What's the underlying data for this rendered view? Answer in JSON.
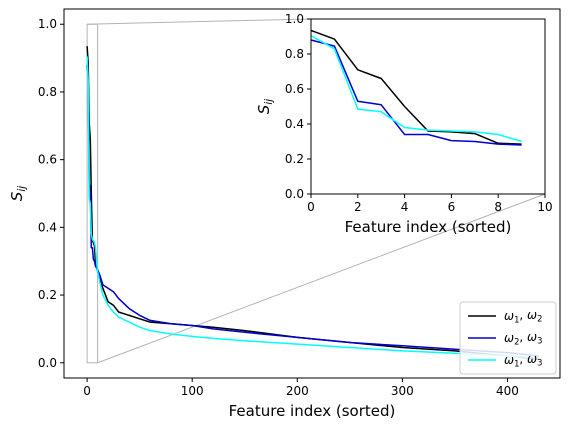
{
  "chart_data": [
    {
      "type": "line",
      "xlabel": "Feature index (sorted)",
      "ylabel": "S_ij",
      "xlim": [
        -22,
        450
      ],
      "ylim": [
        -0.045,
        1.045
      ],
      "xticks": [
        0,
        100,
        200,
        300,
        400
      ],
      "yticks": [
        0.0,
        0.2,
        0.4,
        0.6,
        0.8,
        1.0
      ],
      "legend": "lower-right",
      "zoom_box": {
        "x": [
          0,
          10
        ],
        "y": [
          0,
          1.0
        ]
      },
      "series": [
        {
          "name": "ω1, ω2",
          "color": "#000000",
          "x": [
            0,
            1,
            2,
            3,
            4,
            5,
            6,
            7,
            8,
            9,
            10,
            12,
            15,
            20,
            25,
            30,
            40,
            50,
            60,
            80,
            100,
            120,
            150,
            200,
            250,
            300,
            350,
            400,
            430
          ],
          "y": [
            0.935,
            0.885,
            0.71,
            0.66,
            0.5,
            0.36,
            0.355,
            0.345,
            0.29,
            0.285,
            0.27,
            0.25,
            0.22,
            0.18,
            0.17,
            0.15,
            0.14,
            0.13,
            0.12,
            0.115,
            0.11,
            0.105,
            0.095,
            0.075,
            0.06,
            0.045,
            0.035,
            0.02,
            0.01
          ]
        },
        {
          "name": "ω2, ω3",
          "color": "#0000cc",
          "x": [
            0,
            1,
            2,
            3,
            4,
            5,
            6,
            7,
            8,
            9,
            10,
            12,
            15,
            20,
            25,
            30,
            40,
            50,
            60,
            80,
            100,
            120,
            150,
            200,
            250,
            300,
            350,
            400,
            430
          ],
          "y": [
            0.88,
            0.845,
            0.53,
            0.51,
            0.34,
            0.34,
            0.305,
            0.3,
            0.285,
            0.28,
            0.275,
            0.26,
            0.23,
            0.22,
            0.21,
            0.19,
            0.16,
            0.14,
            0.125,
            0.115,
            0.11,
            0.1,
            0.09,
            0.075,
            0.06,
            0.05,
            0.04,
            0.03,
            0.02
          ]
        },
        {
          "name": "ω1, ω3",
          "color": "#00ffff",
          "x": [
            0,
            1,
            2,
            3,
            4,
            5,
            6,
            7,
            8,
            9,
            10,
            12,
            15,
            20,
            25,
            30,
            40,
            50,
            60,
            80,
            100,
            120,
            150,
            200,
            250,
            300,
            350,
            400,
            430
          ],
          "y": [
            0.905,
            0.83,
            0.485,
            0.47,
            0.38,
            0.365,
            0.36,
            0.355,
            0.34,
            0.3,
            0.27,
            0.24,
            0.2,
            0.17,
            0.15,
            0.135,
            0.12,
            0.105,
            0.095,
            0.085,
            0.078,
            0.072,
            0.065,
            0.055,
            0.045,
            0.035,
            0.028,
            0.02,
            0.015
          ]
        }
      ]
    },
    {
      "type": "line",
      "xlabel": "Feature index (sorted)",
      "ylabel": "S_ij",
      "xlim": [
        0,
        10
      ],
      "ylim": [
        0,
        1.0
      ],
      "xticks": [
        0,
        2,
        4,
        6,
        8,
        10
      ],
      "yticks": [
        0.0,
        0.2,
        0.4,
        0.6,
        0.8,
        1.0
      ],
      "series": [
        {
          "color": "#000000",
          "x": [
            0,
            1,
            2,
            3,
            4,
            5,
            6,
            7,
            8,
            9
          ],
          "y": [
            0.935,
            0.885,
            0.71,
            0.66,
            0.5,
            0.36,
            0.355,
            0.345,
            0.29,
            0.285
          ]
        },
        {
          "color": "#0000cc",
          "x": [
            0,
            1,
            2,
            3,
            4,
            5,
            6,
            7,
            8,
            9
          ],
          "y": [
            0.88,
            0.845,
            0.53,
            0.51,
            0.34,
            0.34,
            0.305,
            0.3,
            0.285,
            0.28
          ]
        },
        {
          "color": "#00ffff",
          "x": [
            0,
            1,
            2,
            3,
            4,
            5,
            6,
            7,
            8,
            9
          ],
          "y": [
            0.905,
            0.83,
            0.485,
            0.47,
            0.38,
            0.365,
            0.36,
            0.355,
            0.34,
            0.3
          ]
        }
      ]
    }
  ]
}
